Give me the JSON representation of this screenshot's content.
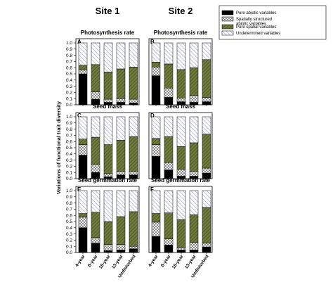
{
  "chart_data": {
    "type": "bar",
    "stacked": true,
    "site_titles": [
      "Site 1",
      "Site 2"
    ],
    "ylabel": "Variations of functional trait diversity",
    "ylim": [
      0,
      1.0
    ],
    "yticks": [
      "0.0",
      "0.1",
      "0.2",
      "0.3",
      "0.4",
      "0.5",
      "0.6",
      "0.7",
      "0.8",
      "0.9",
      "1.0"
    ],
    "categories": [
      "4-year",
      "6-year",
      "10-year",
      "13-year",
      "Undisturbed"
    ],
    "legend": {
      "placement": "top-right",
      "entries": [
        {
          "label": "Pure abiotic variables",
          "pattern": "solid-black"
        },
        {
          "label_lines": [
            "Spatially structured",
            "abiotic variables"
          ],
          "pattern": "crosshatch"
        },
        {
          "label": "Pure spatial variables",
          "pattern": "diagonal-green"
        },
        {
          "label": "Undetermined variables",
          "pattern": "diagonal-lavender"
        }
      ]
    },
    "series_order": [
      "Pure abiotic variables",
      "Spatially structured abiotic variables",
      "Pure spatial variables",
      "Undetermined variables"
    ],
    "panels": [
      {
        "letter": "A",
        "title": "Photosynthesis rate",
        "site": 1,
        "segments": [
          [
            0.5,
            0.06,
            0.08,
            0.36
          ],
          [
            0.09,
            0.12,
            0.44,
            0.35
          ],
          [
            0.04,
            0.05,
            0.44,
            0.47
          ],
          [
            0.04,
            0.06,
            0.48,
            0.42
          ],
          [
            0.03,
            0.06,
            0.52,
            0.39
          ]
        ]
      },
      {
        "letter": "B",
        "title": "Photosynthesis rate",
        "site": 2,
        "segments": [
          [
            0.47,
            0.14,
            0.08,
            0.31
          ],
          [
            0.12,
            0.15,
            0.39,
            0.34
          ],
          [
            0.05,
            0.06,
            0.46,
            0.43
          ],
          [
            0.04,
            0.11,
            0.45,
            0.4
          ],
          [
            0.05,
            0.07,
            0.61,
            0.27
          ]
        ]
      },
      {
        "letter": "C",
        "title": "Seed mass",
        "site": 1,
        "segments": [
          [
            0.38,
            0.17,
            0.09,
            0.36
          ],
          [
            0.1,
            0.13,
            0.44,
            0.33
          ],
          [
            0.03,
            0.05,
            0.47,
            0.45
          ],
          [
            0.06,
            0.06,
            0.5,
            0.38
          ],
          [
            0.06,
            0.06,
            0.56,
            0.32
          ]
        ]
      },
      {
        "letter": "D",
        "title": "Seed mass",
        "site": 2,
        "segments": [
          [
            0.36,
            0.19,
            0.1,
            0.35
          ],
          [
            0.14,
            0.12,
            0.42,
            0.32
          ],
          [
            0.04,
            0.11,
            0.37,
            0.48
          ],
          [
            0.04,
            0.08,
            0.46,
            0.42
          ],
          [
            0.09,
            0.08,
            0.55,
            0.28
          ]
        ]
      },
      {
        "letter": "E",
        "title": "Seed germination rate",
        "site": 1,
        "segments": [
          [
            0.4,
            0.17,
            0.06,
            0.37
          ],
          [
            0.15,
            0.09,
            0.41,
            0.35
          ],
          [
            0.03,
            0.1,
            0.37,
            0.5
          ],
          [
            0.04,
            0.09,
            0.45,
            0.42
          ],
          [
            0.06,
            0.04,
            0.56,
            0.34
          ]
        ]
      },
      {
        "letter": "F",
        "title": "Seed germination rate",
        "site": 2,
        "segments": [
          [
            0.26,
            0.23,
            0.14,
            0.37
          ],
          [
            0.12,
            0.1,
            0.42,
            0.36
          ],
          [
            0.04,
            0.04,
            0.45,
            0.47
          ],
          [
            0.04,
            0.12,
            0.45,
            0.39
          ],
          [
            0.09,
            0.06,
            0.58,
            0.27
          ]
        ]
      }
    ]
  }
}
